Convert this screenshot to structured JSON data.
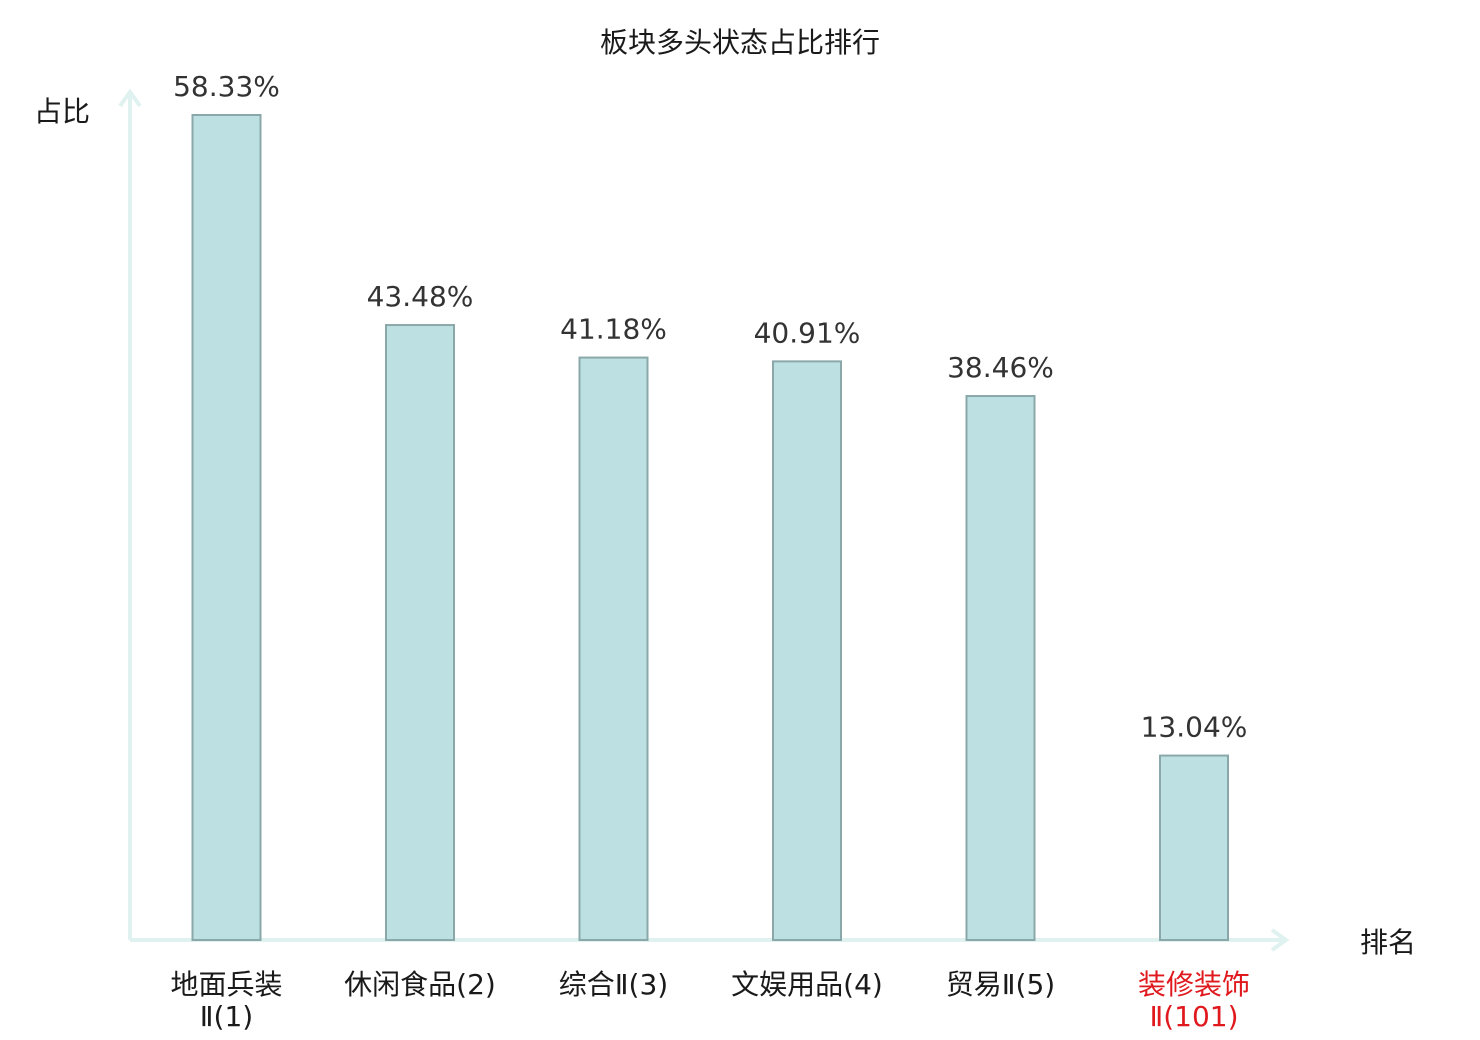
{
  "chart_data": {
    "type": "bar",
    "title": "板块多头状态占比排行",
    "ylabel": "占比",
    "xlabel": "排名",
    "ylim": [
      0,
      60
    ],
    "grid": false,
    "categories": [
      {
        "name": "地面兵装",
        "rank": "Ⅱ(1)"
      },
      {
        "name": "休闲食品",
        "rank": "(2)"
      },
      {
        "name": "综合",
        "rank": "Ⅱ(3)"
      },
      {
        "name": "文娱用品",
        "rank": "(4)"
      },
      {
        "name": "贸易",
        "rank": "Ⅱ(5)"
      },
      {
        "name": "装修装饰",
        "rank": "Ⅱ(101)"
      }
    ],
    "values": [
      58.33,
      43.48,
      41.18,
      40.91,
      38.46,
      13.04
    ],
    "value_labels": [
      "58.33%",
      "43.48%",
      "41.18%",
      "40.91%",
      "38.46%",
      "13.04%"
    ],
    "highlight_index": 5,
    "colors": {
      "bar_fill": "#bde0e3",
      "bar_stroke": "#8aa8aa",
      "axis": "#dff2ef",
      "highlight_text": "#e0191e"
    }
  }
}
